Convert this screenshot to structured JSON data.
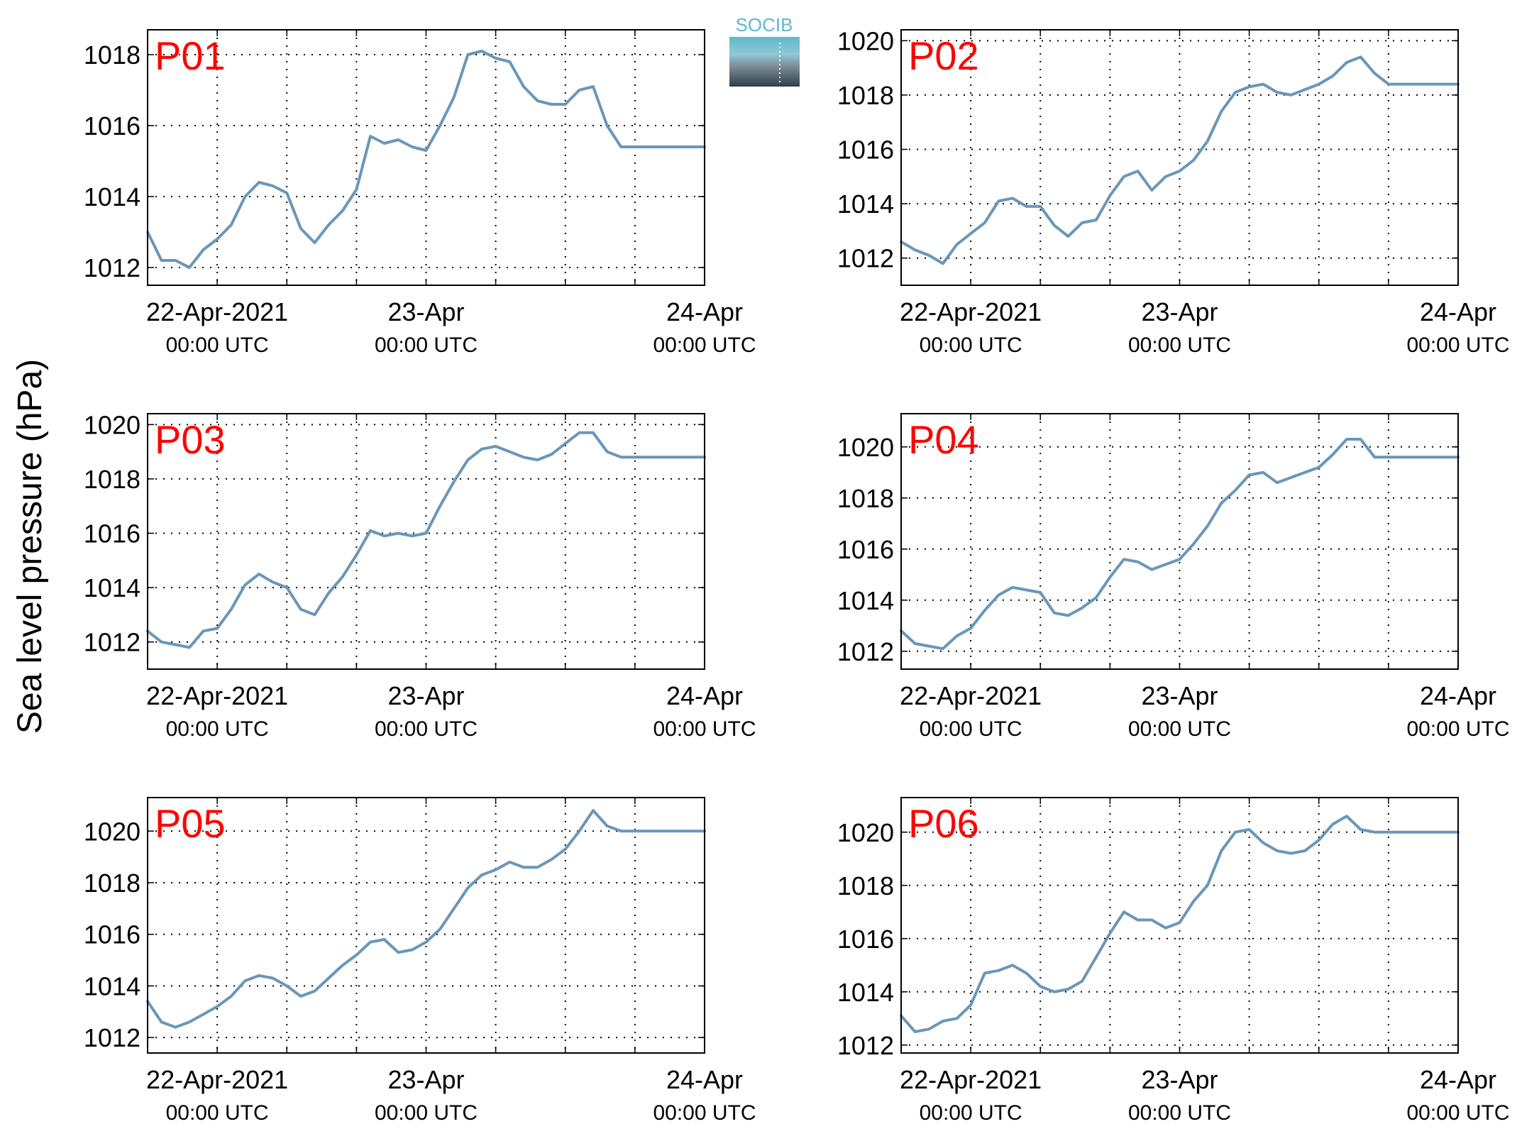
{
  "figure": {
    "ylabel": "Sea level pressure (hPa)",
    "logo_text": "SOCIB",
    "line_color": "#6a96b9",
    "label_color": "#ff0000",
    "logo_colors": {
      "top": "#5fb8cc",
      "bottom": "#2e3f4b",
      "text": "#5fb8cc"
    }
  },
  "chart_data": [
    {
      "type": "line",
      "label": "P01",
      "x_unit": "days since 22-Apr-2021 00:00 UTC",
      "xlim": [
        -0.5,
        1.5
      ],
      "ylim": [
        1011.5,
        1018.7
      ],
      "yticks": [
        1012,
        1014,
        1016,
        1018
      ],
      "xtick_labels": [
        {
          "x": -0.25,
          "line1": "22-Apr-2021",
          "line2": "00:00 UTC"
        },
        {
          "x": 0.5,
          "line1": "23-Apr",
          "line2": "00:00 UTC"
        },
        {
          "x": 1.5,
          "line1": "24-Apr",
          "line2": "00:00 UTC"
        }
      ],
      "grid": true,
      "x": [
        -0.5,
        -0.45,
        -0.4,
        -0.35,
        -0.3,
        -0.25,
        -0.2,
        -0.15,
        -0.1,
        -0.05,
        0,
        0.05,
        0.1,
        0.15,
        0.2,
        0.25,
        0.3,
        0.35,
        0.4,
        0.45,
        0.5,
        0.55,
        0.6,
        0.65,
        0.7,
        0.75,
        0.8,
        0.85,
        0.9,
        0.95,
        1,
        1.05,
        1.1,
        1.15,
        1.2,
        1.25,
        1.3,
        1.35,
        1.4,
        1.45,
        1.5
      ],
      "y": [
        1013.0,
        1012.2,
        1012.2,
        1012.0,
        1012.5,
        1012.8,
        1013.2,
        1014.0,
        1014.4,
        1014.3,
        1014.1,
        1013.1,
        1012.7,
        1013.2,
        1013.6,
        1014.2,
        1015.7,
        1015.5,
        1015.6,
        1015.4,
        1015.3,
        1016.0,
        1016.8,
        1018.0,
        1018.1,
        1017.9,
        1017.8,
        1017.1,
        1016.7,
        1016.6,
        1016.6,
        1017.0,
        1017.1,
        1016.0,
        1015.4,
        1015.4,
        1015.4,
        1015.4,
        1015.4,
        1015.4,
        1015.4
      ]
    },
    {
      "type": "line",
      "label": "P02",
      "x_unit": "days since 22-Apr-2021 00:00 UTC",
      "xlim": [
        -0.5,
        1.5
      ],
      "ylim": [
        1011.0,
        1020.4
      ],
      "yticks": [
        1012,
        1014,
        1016,
        1018,
        1020
      ],
      "xtick_labels": [
        {
          "x": -0.25,
          "line1": "22-Apr-2021",
          "line2": "00:00 UTC"
        },
        {
          "x": 0.5,
          "line1": "23-Apr",
          "line2": "00:00 UTC"
        },
        {
          "x": 1.5,
          "line1": "24-Apr",
          "line2": "00:00 UTC"
        }
      ],
      "grid": true,
      "x": [
        -0.5,
        -0.45,
        -0.4,
        -0.35,
        -0.3,
        -0.25,
        -0.2,
        -0.15,
        -0.1,
        -0.05,
        0,
        0.05,
        0.1,
        0.15,
        0.2,
        0.25,
        0.3,
        0.35,
        0.4,
        0.45,
        0.5,
        0.55,
        0.6,
        0.65,
        0.7,
        0.75,
        0.8,
        0.85,
        0.9,
        0.95,
        1,
        1.05,
        1.1,
        1.15,
        1.2,
        1.25,
        1.3,
        1.35,
        1.4,
        1.45,
        1.5
      ],
      "y": [
        1012.6,
        1012.3,
        1012.1,
        1011.8,
        1012.5,
        1012.9,
        1013.3,
        1014.1,
        1014.2,
        1013.9,
        1013.9,
        1013.2,
        1012.8,
        1013.3,
        1013.4,
        1014.3,
        1015.0,
        1015.2,
        1014.5,
        1015.0,
        1015.2,
        1015.6,
        1016.3,
        1017.4,
        1018.1,
        1018.3,
        1018.4,
        1018.1,
        1018.0,
        1018.2,
        1018.4,
        1018.7,
        1019.2,
        1019.4,
        1018.8,
        1018.4,
        1018.4,
        1018.4,
        1018.4,
        1018.4,
        1018.4
      ]
    },
    {
      "type": "line",
      "label": "P03",
      "x_unit": "days since 22-Apr-2021 00:00 UTC",
      "xlim": [
        -0.5,
        1.5
      ],
      "ylim": [
        1011.0,
        1020.4
      ],
      "yticks": [
        1012,
        1014,
        1016,
        1018,
        1020
      ],
      "xtick_labels": [
        {
          "x": -0.25,
          "line1": "22-Apr-2021",
          "line2": "00:00 UTC"
        },
        {
          "x": 0.5,
          "line1": "23-Apr",
          "line2": "00:00 UTC"
        },
        {
          "x": 1.5,
          "line1": "24-Apr",
          "line2": "00:00 UTC"
        }
      ],
      "grid": true,
      "x": [
        -0.5,
        -0.45,
        -0.4,
        -0.35,
        -0.3,
        -0.25,
        -0.2,
        -0.15,
        -0.1,
        -0.05,
        0,
        0.05,
        0.1,
        0.15,
        0.2,
        0.25,
        0.3,
        0.35,
        0.4,
        0.45,
        0.5,
        0.55,
        0.6,
        0.65,
        0.7,
        0.75,
        0.8,
        0.85,
        0.9,
        0.95,
        1,
        1.05,
        1.1,
        1.15,
        1.2,
        1.25,
        1.3,
        1.35,
        1.4,
        1.45,
        1.5
      ],
      "y": [
        1012.4,
        1012.0,
        1011.9,
        1011.8,
        1012.4,
        1012.5,
        1013.2,
        1014.1,
        1014.5,
        1014.2,
        1014.0,
        1013.2,
        1013.0,
        1013.8,
        1014.4,
        1015.2,
        1016.1,
        1015.9,
        1016.0,
        1015.9,
        1016.0,
        1017.0,
        1017.9,
        1018.7,
        1019.1,
        1019.2,
        1019.0,
        1018.8,
        1018.7,
        1018.9,
        1019.3,
        1019.7,
        1019.7,
        1019.0,
        1018.8,
        1018.8,
        1018.8,
        1018.8,
        1018.8,
        1018.8,
        1018.8
      ]
    },
    {
      "type": "line",
      "label": "P04",
      "x_unit": "days since 22-Apr-2021 00:00 UTC",
      "xlim": [
        -0.5,
        1.5
      ],
      "ylim": [
        1011.3,
        1021.3
      ],
      "yticks": [
        1012,
        1014,
        1016,
        1018,
        1020
      ],
      "xtick_labels": [
        {
          "x": -0.25,
          "line1": "22-Apr-2021",
          "line2": "00:00 UTC"
        },
        {
          "x": 0.5,
          "line1": "23-Apr",
          "line2": "00:00 UTC"
        },
        {
          "x": 1.5,
          "line1": "24-Apr",
          "line2": "00:00 UTC"
        }
      ],
      "grid": true,
      "x": [
        -0.5,
        -0.45,
        -0.4,
        -0.35,
        -0.3,
        -0.25,
        -0.2,
        -0.15,
        -0.1,
        -0.05,
        0,
        0.05,
        0.1,
        0.15,
        0.2,
        0.25,
        0.3,
        0.35,
        0.4,
        0.45,
        0.5,
        0.55,
        0.6,
        0.65,
        0.7,
        0.75,
        0.8,
        0.85,
        0.9,
        0.95,
        1,
        1.05,
        1.1,
        1.15,
        1.2,
        1.25,
        1.3,
        1.35,
        1.4,
        1.45,
        1.5
      ],
      "y": [
        1012.8,
        1012.3,
        1012.2,
        1012.1,
        1012.6,
        1012.9,
        1013.6,
        1014.2,
        1014.5,
        1014.4,
        1014.3,
        1013.5,
        1013.4,
        1013.7,
        1014.1,
        1014.9,
        1015.6,
        1015.5,
        1015.2,
        1015.4,
        1015.6,
        1016.2,
        1016.9,
        1017.8,
        1018.3,
        1018.9,
        1019.0,
        1018.6,
        1018.8,
        1019.0,
        1019.2,
        1019.7,
        1020.3,
        1020.3,
        1019.6,
        1019.6,
        1019.6,
        1019.6,
        1019.6,
        1019.6,
        1019.6
      ]
    },
    {
      "type": "line",
      "label": "P05",
      "x_unit": "days since 22-Apr-2021 00:00 UTC",
      "xlim": [
        -0.5,
        1.5
      ],
      "ylim": [
        1011.4,
        1021.3
      ],
      "yticks": [
        1012,
        1014,
        1016,
        1018,
        1020
      ],
      "xtick_labels": [
        {
          "x": -0.25,
          "line1": "22-Apr-2021",
          "line2": "00:00 UTC"
        },
        {
          "x": 0.5,
          "line1": "23-Apr",
          "line2": "00:00 UTC"
        },
        {
          "x": 1.5,
          "line1": "24-Apr",
          "line2": "00:00 UTC"
        }
      ],
      "grid": true,
      "x": [
        -0.5,
        -0.45,
        -0.4,
        -0.35,
        -0.3,
        -0.25,
        -0.2,
        -0.15,
        -0.1,
        -0.05,
        0,
        0.05,
        0.1,
        0.15,
        0.2,
        0.25,
        0.3,
        0.35,
        0.4,
        0.45,
        0.5,
        0.55,
        0.6,
        0.65,
        0.7,
        0.75,
        0.8,
        0.85,
        0.9,
        0.95,
        1,
        1.05,
        1.1,
        1.15,
        1.2,
        1.25,
        1.3,
        1.35,
        1.4,
        1.45,
        1.5
      ],
      "y": [
        1013.4,
        1012.6,
        1012.4,
        1012.6,
        1012.9,
        1013.2,
        1013.6,
        1014.2,
        1014.4,
        1014.3,
        1014.0,
        1013.6,
        1013.8,
        1014.3,
        1014.8,
        1015.2,
        1015.7,
        1015.8,
        1015.3,
        1015.4,
        1015.7,
        1016.2,
        1017.0,
        1017.8,
        1018.3,
        1018.5,
        1018.8,
        1018.6,
        1018.6,
        1018.9,
        1019.3,
        1020.0,
        1020.8,
        1020.2,
        1020.0,
        1020.0,
        1020.0,
        1020.0,
        1020.0,
        1020.0,
        1020.0
      ]
    },
    {
      "type": "line",
      "label": "P06",
      "x_unit": "days since 22-Apr-2021 00:00 UTC",
      "xlim": [
        -0.5,
        1.5
      ],
      "ylim": [
        1011.7,
        1021.3
      ],
      "yticks": [
        1012,
        1014,
        1016,
        1018,
        1020
      ],
      "xtick_labels": [
        {
          "x": -0.25,
          "line1": "22-Apr-2021",
          "line2": "00:00 UTC"
        },
        {
          "x": 0.5,
          "line1": "23-Apr",
          "line2": "00:00 UTC"
        },
        {
          "x": 1.5,
          "line1": "24-Apr",
          "line2": "00:00 UTC"
        }
      ],
      "grid": true,
      "x": [
        -0.5,
        -0.45,
        -0.4,
        -0.35,
        -0.3,
        -0.25,
        -0.2,
        -0.15,
        -0.1,
        -0.05,
        0,
        0.05,
        0.1,
        0.15,
        0.2,
        0.25,
        0.3,
        0.35,
        0.4,
        0.45,
        0.5,
        0.55,
        0.6,
        0.65,
        0.7,
        0.75,
        0.8,
        0.85,
        0.9,
        0.95,
        1,
        1.05,
        1.1,
        1.15,
        1.2,
        1.25,
        1.3,
        1.35,
        1.4,
        1.45,
        1.5
      ],
      "y": [
        1013.1,
        1012.5,
        1012.6,
        1012.9,
        1013.0,
        1013.5,
        1014.7,
        1014.8,
        1015.0,
        1014.7,
        1014.2,
        1014.0,
        1014.1,
        1014.4,
        1015.3,
        1016.2,
        1017.0,
        1016.7,
        1016.7,
        1016.4,
        1016.6,
        1017.4,
        1018.0,
        1019.3,
        1020.0,
        1020.1,
        1019.6,
        1019.3,
        1019.2,
        1019.3,
        1019.7,
        1020.3,
        1020.6,
        1020.1,
        1020.0,
        1020.0,
        1020.0,
        1020.0,
        1020.0,
        1020.0,
        1020.0
      ]
    }
  ]
}
